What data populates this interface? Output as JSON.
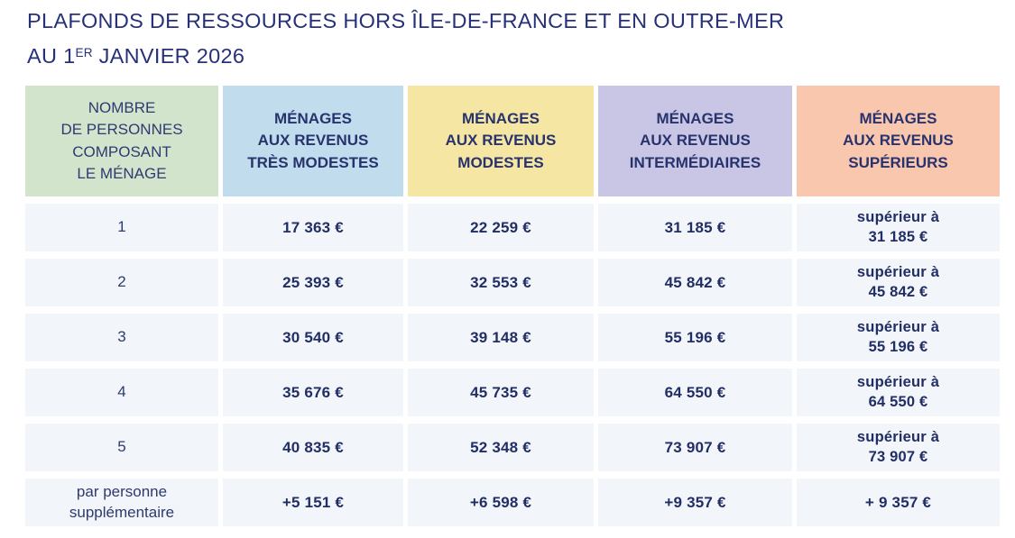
{
  "page": {
    "title_line1": "PLAFONDS DE RESSOURCES HORS ÎLE-DE-FRANCE ET EN OUTRE-MER",
    "title_line2_prefix": "AU 1",
    "title_line2_sup": "ER",
    "title_line2_suffix": " JANVIER 2026"
  },
  "colors": {
    "title_text": "#26317a",
    "value_text": "#212e66",
    "header_green": "#d3e4cd",
    "header_blue": "#c1dcec",
    "header_yellow": "#f5e7a3",
    "header_purple": "#c8c6e4",
    "header_salmon": "#f9c7ae",
    "row_background": "#f2f5f9"
  },
  "table": {
    "headers": [
      {
        "label": "NOMBRE\nDE PERSONNES\nCOMPOSANT\nLE MÉNAGE"
      },
      {
        "label": "MÉNAGES\nAUX REVENUS\nTRÈS MODESTES"
      },
      {
        "label": "MÉNAGES\nAUX REVENUS\nMODESTES"
      },
      {
        "label": "MÉNAGES\nAUX REVENUS\nINTERMÉDIAIRES"
      },
      {
        "label": "MÉNAGES\nAUX REVENUS\nSUPÉRIEURS"
      }
    ],
    "rows": [
      {
        "label": "1",
        "values": [
          "17 363 €",
          "22 259 €",
          "31 185 €",
          "supérieur à\n31 185 €"
        ]
      },
      {
        "label": "2",
        "values": [
          "25 393 €",
          "32 553 €",
          "45 842 €",
          "supérieur à\n45 842 €"
        ]
      },
      {
        "label": "3",
        "values": [
          "30 540 €",
          "39 148 €",
          "55 196 €",
          "supérieur à\n55 196 €"
        ]
      },
      {
        "label": "4",
        "values": [
          "35 676 €",
          "45 735 €",
          "64 550 €",
          "supérieur à\n64 550 €"
        ]
      },
      {
        "label": "5",
        "values": [
          "40 835 €",
          "52 348 €",
          "73 907 €",
          "supérieur à\n73 907 €"
        ]
      },
      {
        "label": "par personne\nsupplémentaire",
        "values": [
          "+5 151 €",
          "+6 598 €",
          "+9 357 €",
          "+ 9 357 €"
        ]
      }
    ]
  }
}
